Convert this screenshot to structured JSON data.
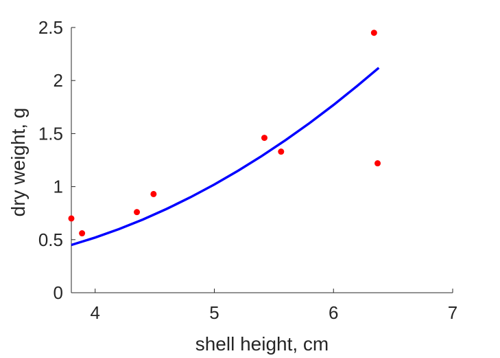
{
  "chart_data": {
    "type": "scatter",
    "title": "",
    "xlabel": "shell height, cm",
    "ylabel": "dry weight, g",
    "xlim": [
      3.8,
      7
    ],
    "ylim": [
      0,
      2.5
    ],
    "xticks": [
      4,
      5,
      6,
      7
    ],
    "xtick_labels": [
      "4",
      "5",
      "6",
      "7"
    ],
    "yticks": [
      0,
      0.5,
      1,
      1.5,
      2,
      2.5
    ],
    "ytick_labels": [
      "0",
      "0.5",
      "1",
      "1.5",
      "2",
      "2.5"
    ],
    "grid": false,
    "legend": "none",
    "series": [
      {
        "kind": "points",
        "color": "#ff0000",
        "x": [
          3.8,
          3.89,
          4.35,
          4.49,
          5.42,
          5.56,
          6.34,
          6.37
        ],
        "y": [
          0.7,
          0.56,
          0.76,
          0.93,
          1.46,
          1.33,
          2.45,
          1.22
        ]
      },
      {
        "kind": "fit-curve",
        "color": "#0000ff",
        "x": [
          3.8,
          4.0,
          4.2,
          4.4,
          4.6,
          4.8,
          5.0,
          5.2,
          5.4,
          5.6,
          5.8,
          6.0,
          6.2,
          6.38
        ],
        "y": [
          0.45,
          0.52,
          0.6,
          0.69,
          0.79,
          0.9,
          1.02,
          1.15,
          1.29,
          1.44,
          1.6,
          1.77,
          1.95,
          2.12
        ]
      }
    ]
  }
}
